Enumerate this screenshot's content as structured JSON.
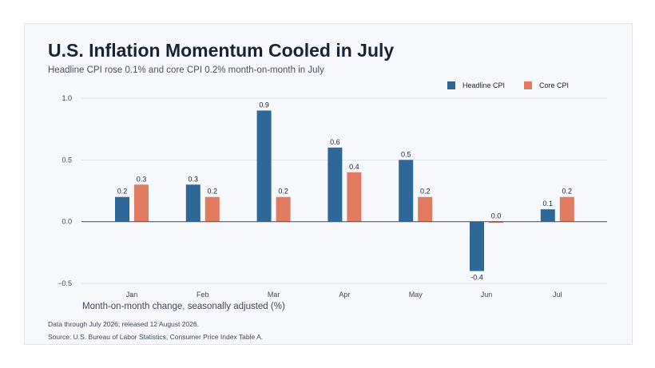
{
  "chart_data": {
    "type": "bar",
    "title": "U.S. Inflation Momentum Cooled in July",
    "subtitle": "Headline CPI rose 0.1% and core CPI 0.2% month-on-month in July",
    "xlabel": "Month-on-month change, seasonally adjusted (%)",
    "ylabel": "",
    "categories": [
      "Jan",
      "Feb",
      "Mar",
      "Apr",
      "May",
      "Jun",
      "Jul"
    ],
    "series": [
      {
        "name": "Headline CPI",
        "color": "#2e6899",
        "values": [
          0.2,
          0.3,
          0.9,
          0.6,
          0.5,
          -0.4,
          0.1
        ]
      },
      {
        "name": "Core CPI",
        "color": "#e07b5f",
        "values": [
          0.3,
          0.2,
          0.2,
          0.4,
          0.2,
          0.0,
          0.2
        ]
      }
    ],
    "ylim": [
      -0.5,
      1.0
    ],
    "yticks": [
      -0.5,
      0.0,
      0.5,
      1.0
    ],
    "ytick_labels": [
      "−0.5",
      "0.0",
      "0.5",
      "1.0"
    ],
    "grid": true,
    "legend_position": "top-right"
  },
  "footnotes": {
    "data_note": "Data through July 2026; released 12 August 2026.",
    "source": "Source: U.S. Bureau of Labor Statistics, Consumer Price Index Table A."
  }
}
